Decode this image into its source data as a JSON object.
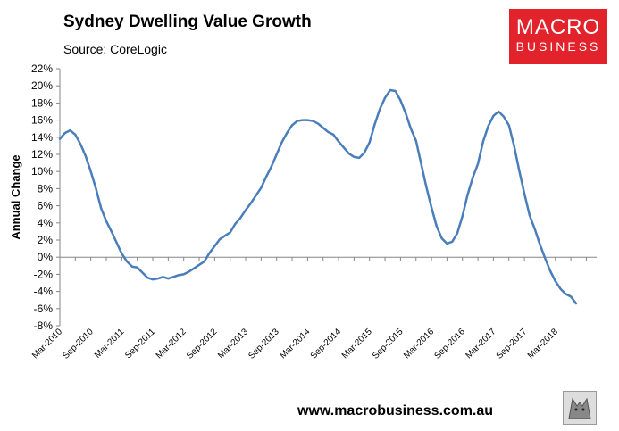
{
  "header": {
    "title": "Sydney Dwelling Value Growth",
    "source": "Source: CoreLogic"
  },
  "logo": {
    "line1": "MACRO",
    "line2": "BUSINESS",
    "color": "#e3232b"
  },
  "footer": {
    "url": "www.macrobusiness.com.au"
  },
  "chart_data": {
    "type": "line",
    "title": "Sydney Dwelling Value Growth",
    "xlabel": "",
    "ylabel": "Annual Change",
    "ylim": [
      -8,
      22
    ],
    "yticks": [
      -8,
      -6,
      -4,
      -2,
      0,
      2,
      4,
      6,
      8,
      10,
      12,
      14,
      16,
      18,
      20,
      22
    ],
    "ytick_labels": [
      "-8%",
      "-6%",
      "-4%",
      "-2%",
      "0%",
      "2%",
      "4%",
      "6%",
      "8%",
      "10%",
      "12%",
      "14%",
      "16%",
      "18%",
      "20%",
      "22%"
    ],
    "xtick_labels": [
      "Mar-2010",
      "Sep-2010",
      "Mar-2011",
      "Sep-2011",
      "Mar-2012",
      "Sep-2012",
      "Mar-2013",
      "Sep-2013",
      "Mar-2014",
      "Sep-2014",
      "Mar-2015",
      "Sep-2015",
      "Mar-2016",
      "Sep-2016",
      "Mar-2017",
      "Sep-2017",
      "Mar-2018"
    ],
    "line_color": "#4a7ebb",
    "series": [
      {
        "name": "Annual Change",
        "start": "Mar-2010",
        "frequency": "monthly",
        "values": [
          13.8,
          14.5,
          14.8,
          14.3,
          13.2,
          11.8,
          10.0,
          8.0,
          5.7,
          4.2,
          3.0,
          1.7,
          0.4,
          -0.5,
          -1.1,
          -1.2,
          -1.8,
          -2.4,
          -2.6,
          -2.5,
          -2.3,
          -2.5,
          -2.3,
          -2.1,
          -2.0,
          -1.7,
          -1.3,
          -0.9,
          -0.5,
          0.5,
          1.3,
          2.1,
          2.5,
          2.9,
          3.9,
          4.6,
          5.5,
          6.3,
          7.2,
          8.1,
          9.4,
          10.6,
          12.0,
          13.4,
          14.5,
          15.4,
          15.9,
          16.0,
          16.0,
          15.9,
          15.6,
          15.1,
          14.6,
          14.3,
          13.5,
          12.8,
          12.1,
          11.7,
          11.6,
          12.2,
          13.4,
          15.5,
          17.3,
          18.6,
          19.5,
          19.4,
          18.3,
          16.8,
          15.0,
          13.6,
          10.9,
          8.2,
          5.8,
          3.6,
          2.2,
          1.6,
          1.8,
          2.8,
          4.8,
          7.3,
          9.3,
          10.9,
          13.5,
          15.3,
          16.5,
          17.0,
          16.4,
          15.4,
          13.0,
          10.1,
          7.4,
          4.9,
          3.3,
          1.5,
          -0.1,
          -1.6,
          -2.8,
          -3.7,
          -4.3,
          -4.6,
          -5.4
        ]
      }
    ]
  }
}
